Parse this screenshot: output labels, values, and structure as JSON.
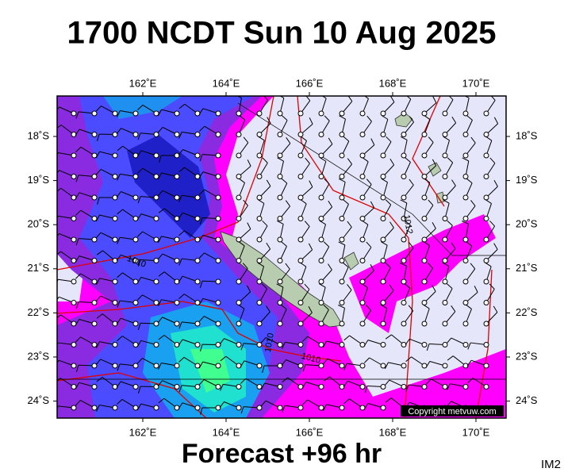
{
  "header": {
    "title": "1700 NCDT Sun 10 Aug 2025"
  },
  "map": {
    "lon_labels": [
      "162˚E",
      "164˚E",
      "166˚E",
      "168˚E",
      "170˚E"
    ],
    "lat_labels": [
      "18˚S",
      "19˚S",
      "20˚S",
      "21˚S",
      "22˚S",
      "23˚S",
      "24˚S"
    ],
    "contour_labels": [
      "1010",
      "1012",
      "1010",
      "1010"
    ],
    "copyright": "Copyright metvuw.com"
  },
  "footer": {
    "forecast": "Forecast +96 hr",
    "code": "IM2"
  }
}
